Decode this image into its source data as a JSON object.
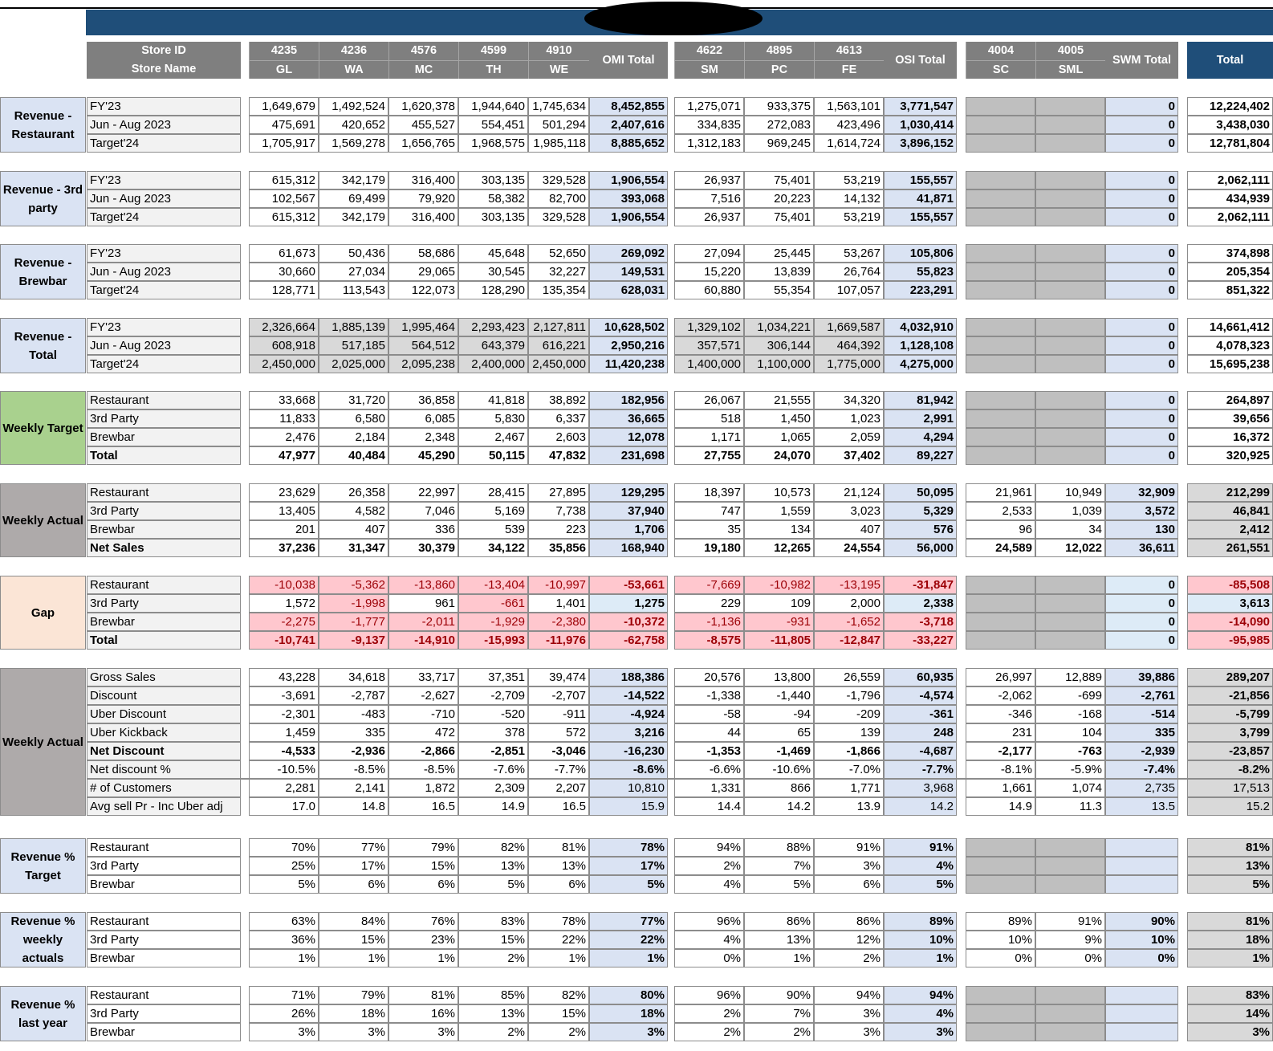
{
  "header": {
    "store_id_label": "Store ID",
    "store_name_label": "Store Name",
    "stores": [
      {
        "id": "4235",
        "name": "GL"
      },
      {
        "id": "4236",
        "name": "WA"
      },
      {
        "id": "4576",
        "name": "MC"
      },
      {
        "id": "4599",
        "name": "TH"
      },
      {
        "id": "4910",
        "name": "WE"
      },
      {
        "total": "OMI Total"
      },
      {
        "id": "4622",
        "name": "SM"
      },
      {
        "id": "4895",
        "name": "PC"
      },
      {
        "id": "4613",
        "name": "FE"
      },
      {
        "total": "OSI Total"
      },
      {
        "id": "4004",
        "name": "SC"
      },
      {
        "id": "4005",
        "name": "SML"
      },
      {
        "total": "SWM Total"
      },
      {
        "total": "Total"
      }
    ]
  },
  "colors": {
    "banner": "#1f4e79",
    "header_gray": "#7f7f7f",
    "group_blue": "#dae3f3",
    "group_green": "#a9d18e",
    "group_gray": "#aeaaaa",
    "group_peach": "#fbe5d6",
    "subtotal_blue": "#dae3f3",
    "negative_bg": "#ffc7ce",
    "negative_text": "#9c0006",
    "positive_bg": "#ddebf7",
    "inactive": "#bfbfbf"
  },
  "sections": [
    {
      "group": "Revenue - Restaurant",
      "rows": [
        {
          "label": "FY'23",
          "values": [
            "1,649,679",
            "1,492,524",
            "1,620,378",
            "1,944,640",
            "1,745,634",
            "8,452,855",
            "1,275,071",
            "933,375",
            "1,563,101",
            "3,771,547",
            "",
            "",
            "0",
            "12,224,402"
          ]
        },
        {
          "label": "Jun - Aug 2023",
          "values": [
            "475,691",
            "420,652",
            "455,527",
            "554,451",
            "501,294",
            "2,407,616",
            "334,835",
            "272,083",
            "423,496",
            "1,030,414",
            "",
            "",
            "0",
            "3,438,030"
          ]
        },
        {
          "label": "Target'24",
          "values": [
            "1,705,917",
            "1,569,278",
            "1,656,765",
            "1,968,575",
            "1,985,118",
            "8,885,652",
            "1,312,183",
            "969,245",
            "1,614,724",
            "3,896,152",
            "",
            "",
            "0",
            "12,781,804"
          ]
        }
      ]
    },
    {
      "group": "Revenue - 3rd party",
      "rows": [
        {
          "label": "FY'23",
          "values": [
            "615,312",
            "342,179",
            "316,400",
            "303,135",
            "329,528",
            "1,906,554",
            "26,937",
            "75,401",
            "53,219",
            "155,557",
            "",
            "",
            "0",
            "2,062,111"
          ]
        },
        {
          "label": "Jun - Aug 2023",
          "values": [
            "102,567",
            "69,499",
            "79,920",
            "58,382",
            "82,700",
            "393,068",
            "7,516",
            "20,223",
            "14,132",
            "41,871",
            "",
            "",
            "0",
            "434,939"
          ]
        },
        {
          "label": "Target'24",
          "values": [
            "615,312",
            "342,179",
            "316,400",
            "303,135",
            "329,528",
            "1,906,554",
            "26,937",
            "75,401",
            "53,219",
            "155,557",
            "",
            "",
            "0",
            "2,062,111"
          ]
        }
      ]
    },
    {
      "group": "Revenue - Brewbar",
      "rows": [
        {
          "label": "FY'23",
          "values": [
            "61,673",
            "50,436",
            "58,686",
            "45,648",
            "52,650",
            "269,092",
            "27,094",
            "25,445",
            "53,267",
            "105,806",
            "",
            "",
            "0",
            "374,898"
          ]
        },
        {
          "label": "Jun - Aug 2023",
          "values": [
            "30,660",
            "27,034",
            "29,065",
            "30,545",
            "32,227",
            "149,531",
            "15,220",
            "13,839",
            "26,764",
            "55,823",
            "",
            "",
            "0",
            "205,354"
          ]
        },
        {
          "label": "Target'24",
          "values": [
            "128,771",
            "113,543",
            "122,073",
            "128,290",
            "135,354",
            "628,031",
            "60,880",
            "55,354",
            "107,057",
            "223,291",
            "",
            "",
            "0",
            "851,322"
          ]
        }
      ]
    },
    {
      "group": "Revenue - Total",
      "rows": [
        {
          "label": "FY'23",
          "values": [
            "2,326,664",
            "1,885,139",
            "1,995,464",
            "2,293,423",
            "2,127,811",
            "10,628,502",
            "1,329,102",
            "1,034,221",
            "1,669,587",
            "4,032,910",
            "",
            "",
            "0",
            "14,661,412"
          ]
        },
        {
          "label": "Jun - Aug 2023",
          "values": [
            "608,918",
            "517,185",
            "564,512",
            "643,379",
            "616,221",
            "2,950,216",
            "357,571",
            "306,144",
            "464,392",
            "1,128,108",
            "",
            "",
            "0",
            "4,078,323"
          ]
        },
        {
          "label": "Target'24",
          "values": [
            "2,450,000",
            "2,025,000",
            "2,095,238",
            "2,400,000",
            "2,450,000",
            "11,420,238",
            "1,400,000",
            "1,100,000",
            "1,775,000",
            "4,275,000",
            "",
            "",
            "0",
            "15,695,238"
          ]
        }
      ]
    },
    {
      "group": "Weekly Target",
      "rows": [
        {
          "label": "Restaurant",
          "values": [
            "33,668",
            "31,720",
            "36,858",
            "41,818",
            "38,892",
            "182,956",
            "26,067",
            "21,555",
            "34,320",
            "81,942",
            "",
            "",
            "0",
            "264,897"
          ]
        },
        {
          "label": "3rd Party",
          "values": [
            "11,833",
            "6,580",
            "6,085",
            "5,830",
            "6,337",
            "36,665",
            "518",
            "1,450",
            "1,023",
            "2,991",
            "",
            "",
            "0",
            "39,656"
          ]
        },
        {
          "label": "Brewbar",
          "values": [
            "2,476",
            "2,184",
            "2,348",
            "2,467",
            "2,603",
            "12,078",
            "1,171",
            "1,065",
            "2,059",
            "4,294",
            "",
            "",
            "0",
            "16,372"
          ]
        },
        {
          "label": "Total",
          "values": [
            "47,977",
            "40,484",
            "45,290",
            "50,115",
            "47,832",
            "231,698",
            "27,755",
            "24,070",
            "37,402",
            "89,227",
            "",
            "",
            "0",
            "320,925"
          ]
        }
      ]
    },
    {
      "group": "Weekly Actual",
      "rows": [
        {
          "label": "Restaurant",
          "values": [
            "23,629",
            "26,358",
            "22,997",
            "28,415",
            "27,895",
            "129,295",
            "18,397",
            "10,573",
            "21,124",
            "50,095",
            "21,961",
            "10,949",
            "32,909",
            "212,299"
          ]
        },
        {
          "label": "3rd Party",
          "values": [
            "13,405",
            "4,582",
            "7,046",
            "5,169",
            "7,738",
            "37,940",
            "747",
            "1,559",
            "3,023",
            "5,329",
            "2,533",
            "1,039",
            "3,572",
            "46,841"
          ]
        },
        {
          "label": "Brewbar",
          "values": [
            "201",
            "407",
            "336",
            "539",
            "223",
            "1,706",
            "35",
            "134",
            "407",
            "576",
            "96",
            "34",
            "130",
            "2,412"
          ]
        },
        {
          "label": "Net Sales",
          "values": [
            "37,236",
            "31,347",
            "30,379",
            "34,122",
            "35,856",
            "168,940",
            "19,180",
            "12,265",
            "24,554",
            "56,000",
            "24,589",
            "12,022",
            "36,611",
            "261,551"
          ]
        }
      ]
    },
    {
      "group": "Gap",
      "rows": [
        {
          "label": "Restaurant",
          "values": [
            "-10,038",
            "-5,362",
            "-13,860",
            "-13,404",
            "-10,997",
            "-53,661",
            "-7,669",
            "-10,982",
            "-13,195",
            "-31,847",
            "",
            "",
            "0",
            "-85,508"
          ]
        },
        {
          "label": "3rd Party",
          "values": [
            "1,572",
            "-1,998",
            "961",
            "-661",
            "1,401",
            "1,275",
            "229",
            "109",
            "2,000",
            "2,338",
            "",
            "",
            "0",
            "3,613"
          ]
        },
        {
          "label": "Brewbar",
          "values": [
            "-2,275",
            "-1,777",
            "-2,011",
            "-1,929",
            "-2,380",
            "-10,372",
            "-1,136",
            "-931",
            "-1,652",
            "-3,718",
            "",
            "",
            "0",
            "-14,090"
          ]
        },
        {
          "label": "Total",
          "values": [
            "-10,741",
            "-9,137",
            "-14,910",
            "-15,993",
            "-11,976",
            "-62,758",
            "-8,575",
            "-11,805",
            "-12,847",
            "-33,227",
            "",
            "",
            "0",
            "-95,985"
          ]
        }
      ]
    },
    {
      "group": "Weekly Actual",
      "rows": [
        {
          "label": "Gross Sales",
          "values": [
            "43,228",
            "34,618",
            "33,717",
            "37,351",
            "39,474",
            "188,386",
            "20,576",
            "13,800",
            "26,559",
            "60,935",
            "26,997",
            "12,889",
            "39,886",
            "289,207"
          ]
        },
        {
          "label": "Discount",
          "values": [
            "-3,691",
            "-2,787",
            "-2,627",
            "-2,709",
            "-2,707",
            "-14,522",
            "-1,338",
            "-1,440",
            "-1,796",
            "-4,574",
            "-2,062",
            "-699",
            "-2,761",
            "-21,856"
          ]
        },
        {
          "label": "Uber Discount",
          "values": [
            "-2,301",
            "-483",
            "-710",
            "-520",
            "-911",
            "-4,924",
            "-58",
            "-94",
            "-209",
            "-361",
            "-346",
            "-168",
            "-514",
            "-5,799"
          ]
        },
        {
          "label": "Uber Kickback",
          "values": [
            "1,459",
            "335",
            "472",
            "378",
            "572",
            "3,216",
            "44",
            "65",
            "139",
            "248",
            "231",
            "104",
            "335",
            "3,799"
          ]
        },
        {
          "label": "Net Discount",
          "values": [
            "-4,533",
            "-2,936",
            "-2,866",
            "-2,851",
            "-3,046",
            "-16,230",
            "-1,353",
            "-1,469",
            "-1,866",
            "-4,687",
            "-2,177",
            "-763",
            "-2,939",
            "-23,857"
          ]
        },
        {
          "label": "Net discount %",
          "values": [
            "-10.5%",
            "-8.5%",
            "-8.5%",
            "-7.6%",
            "-7.7%",
            "-8.6%",
            "-6.6%",
            "-10.6%",
            "-7.0%",
            "-7.7%",
            "-8.1%",
            "-5.9%",
            "-7.4%",
            "-8.2%"
          ]
        },
        {
          "label": "# of Customers",
          "values": [
            "2,281",
            "2,141",
            "1,872",
            "2,309",
            "2,207",
            "10,810",
            "1,331",
            "866",
            "1,771",
            "3,968",
            "1,661",
            "1,074",
            "2,735",
            "17,513"
          ]
        },
        {
          "label": "Avg sell Pr - Inc Uber adj",
          "values": [
            "17.0",
            "14.8",
            "16.5",
            "14.9",
            "16.5",
            "15.9",
            "14.4",
            "14.2",
            "13.9",
            "14.2",
            "14.9",
            "11.3",
            "13.5",
            "15.2"
          ]
        }
      ]
    },
    {
      "group": "Revenue % Target",
      "rows": [
        {
          "label": "Restaurant",
          "values": [
            "70%",
            "77%",
            "79%",
            "82%",
            "81%",
            "78%",
            "94%",
            "88%",
            "91%",
            "91%",
            "",
            "",
            "",
            "81%"
          ]
        },
        {
          "label": "3rd Party",
          "values": [
            "25%",
            "17%",
            "15%",
            "13%",
            "13%",
            "17%",
            "2%",
            "7%",
            "3%",
            "4%",
            "",
            "",
            "",
            "13%"
          ]
        },
        {
          "label": "Brewbar",
          "values": [
            "5%",
            "6%",
            "6%",
            "5%",
            "6%",
            "5%",
            "4%",
            "5%",
            "6%",
            "5%",
            "",
            "",
            "",
            "5%"
          ]
        }
      ]
    },
    {
      "group": "Revenue % weekly actuals",
      "rows": [
        {
          "label": "Restaurant",
          "values": [
            "63%",
            "84%",
            "76%",
            "83%",
            "78%",
            "77%",
            "96%",
            "86%",
            "86%",
            "89%",
            "89%",
            "91%",
            "90%",
            "81%"
          ]
        },
        {
          "label": "3rd Party",
          "values": [
            "36%",
            "15%",
            "23%",
            "15%",
            "22%",
            "22%",
            "4%",
            "13%",
            "12%",
            "10%",
            "10%",
            "9%",
            "10%",
            "18%"
          ]
        },
        {
          "label": "Brewbar",
          "values": [
            "1%",
            "1%",
            "1%",
            "2%",
            "1%",
            "1%",
            "0%",
            "1%",
            "2%",
            "1%",
            "0%",
            "0%",
            "0%",
            "1%"
          ]
        }
      ]
    },
    {
      "group": "Revenue % last year",
      "rows": [
        {
          "label": "Restaurant",
          "values": [
            "71%",
            "79%",
            "81%",
            "85%",
            "82%",
            "80%",
            "96%",
            "90%",
            "94%",
            "94%",
            "",
            "",
            "",
            "83%"
          ]
        },
        {
          "label": "3rd Party",
          "values": [
            "26%",
            "18%",
            "16%",
            "13%",
            "15%",
            "18%",
            "2%",
            "7%",
            "3%",
            "4%",
            "",
            "",
            "",
            "14%"
          ]
        },
        {
          "label": "Brewbar",
          "values": [
            "3%",
            "3%",
            "3%",
            "2%",
            "2%",
            "3%",
            "2%",
            "2%",
            "3%",
            "3%",
            "",
            "",
            "",
            "3%"
          ]
        }
      ]
    }
  ]
}
